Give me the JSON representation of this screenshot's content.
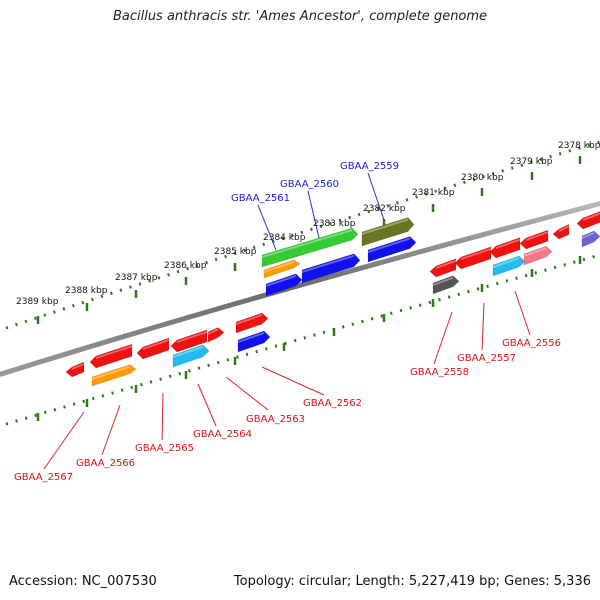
{
  "title": "Bacillus anthracis str. 'Ames Ancestor', complete genome",
  "footer": {
    "accession": "Accession: NC_007530",
    "summary": "Topology: circular; Length: 5,227,419 bp; Genes: 5,336"
  },
  "colors": {
    "backbone": "#707070",
    "tick": "#2a7a1a",
    "label_top": "#1a1adb",
    "label_bottom": "#dd1111",
    "leader_top": "#2a2acc",
    "leader_bottom": "#dd2222"
  },
  "kbp_ticks": [
    {
      "label": "2389 kbp",
      "position_kbp": 2389
    },
    {
      "label": "2388 kbp",
      "position_kbp": 2388
    },
    {
      "label": "2387 kbp",
      "position_kbp": 2387
    },
    {
      "label": "2386 kbp",
      "position_kbp": 2386
    },
    {
      "label": "2385 kbp",
      "position_kbp": 2385
    },
    {
      "label": "2384 kbp",
      "position_kbp": 2384
    },
    {
      "label": "2383 kbp",
      "position_kbp": 2383
    },
    {
      "label": "2382 kbp",
      "position_kbp": 2382
    },
    {
      "label": "2381 kbp",
      "position_kbp": 2381
    },
    {
      "label": "2380 kbp",
      "position_kbp": 2380
    },
    {
      "label": "2379 kbp",
      "position_kbp": 2379
    },
    {
      "label": "2378 kbp",
      "position_kbp": 2378
    }
  ],
  "gene_labels_top": [
    {
      "name": "GBAA_2561"
    },
    {
      "name": "GBAA_2560"
    },
    {
      "name": "GBAA_2559"
    }
  ],
  "gene_labels_bottom": [
    {
      "name": "GBAA_2567"
    },
    {
      "name": "GBAA_2566"
    },
    {
      "name": "GBAA_2565"
    },
    {
      "name": "GBAA_2564"
    },
    {
      "name": "GBAA_2563"
    },
    {
      "name": "GBAA_2562"
    },
    {
      "name": "GBAA_2558"
    },
    {
      "name": "GBAA_2557"
    },
    {
      "name": "GBAA_2556"
    }
  ],
  "features": [
    {
      "color": "#ee1111"
    },
    {
      "color": "#ee1111"
    },
    {
      "color": "#ee1111"
    },
    {
      "color": "#ee1111"
    },
    {
      "color": "#ee1111"
    },
    {
      "color": "#ee1111"
    },
    {
      "color": "#ee1111"
    },
    {
      "color": "#ee1111"
    },
    {
      "color": "#ee1111"
    },
    {
      "color": "#ee1111"
    },
    {
      "color": "#ee1111"
    },
    {
      "color": "#ee1111"
    },
    {
      "color": "#33cc33"
    },
    {
      "color": "#ff9900"
    },
    {
      "color": "#667722"
    },
    {
      "color": "#1111ee"
    },
    {
      "color": "#1111ee"
    },
    {
      "color": "#1111ee"
    },
    {
      "color": "#1111ee"
    },
    {
      "color": "#6666cc"
    },
    {
      "color": "#22bbee"
    },
    {
      "color": "#22bbee"
    },
    {
      "color": "#ee7788"
    },
    {
      "color": "#ff9900"
    },
    {
      "color": "#555555"
    }
  ]
}
